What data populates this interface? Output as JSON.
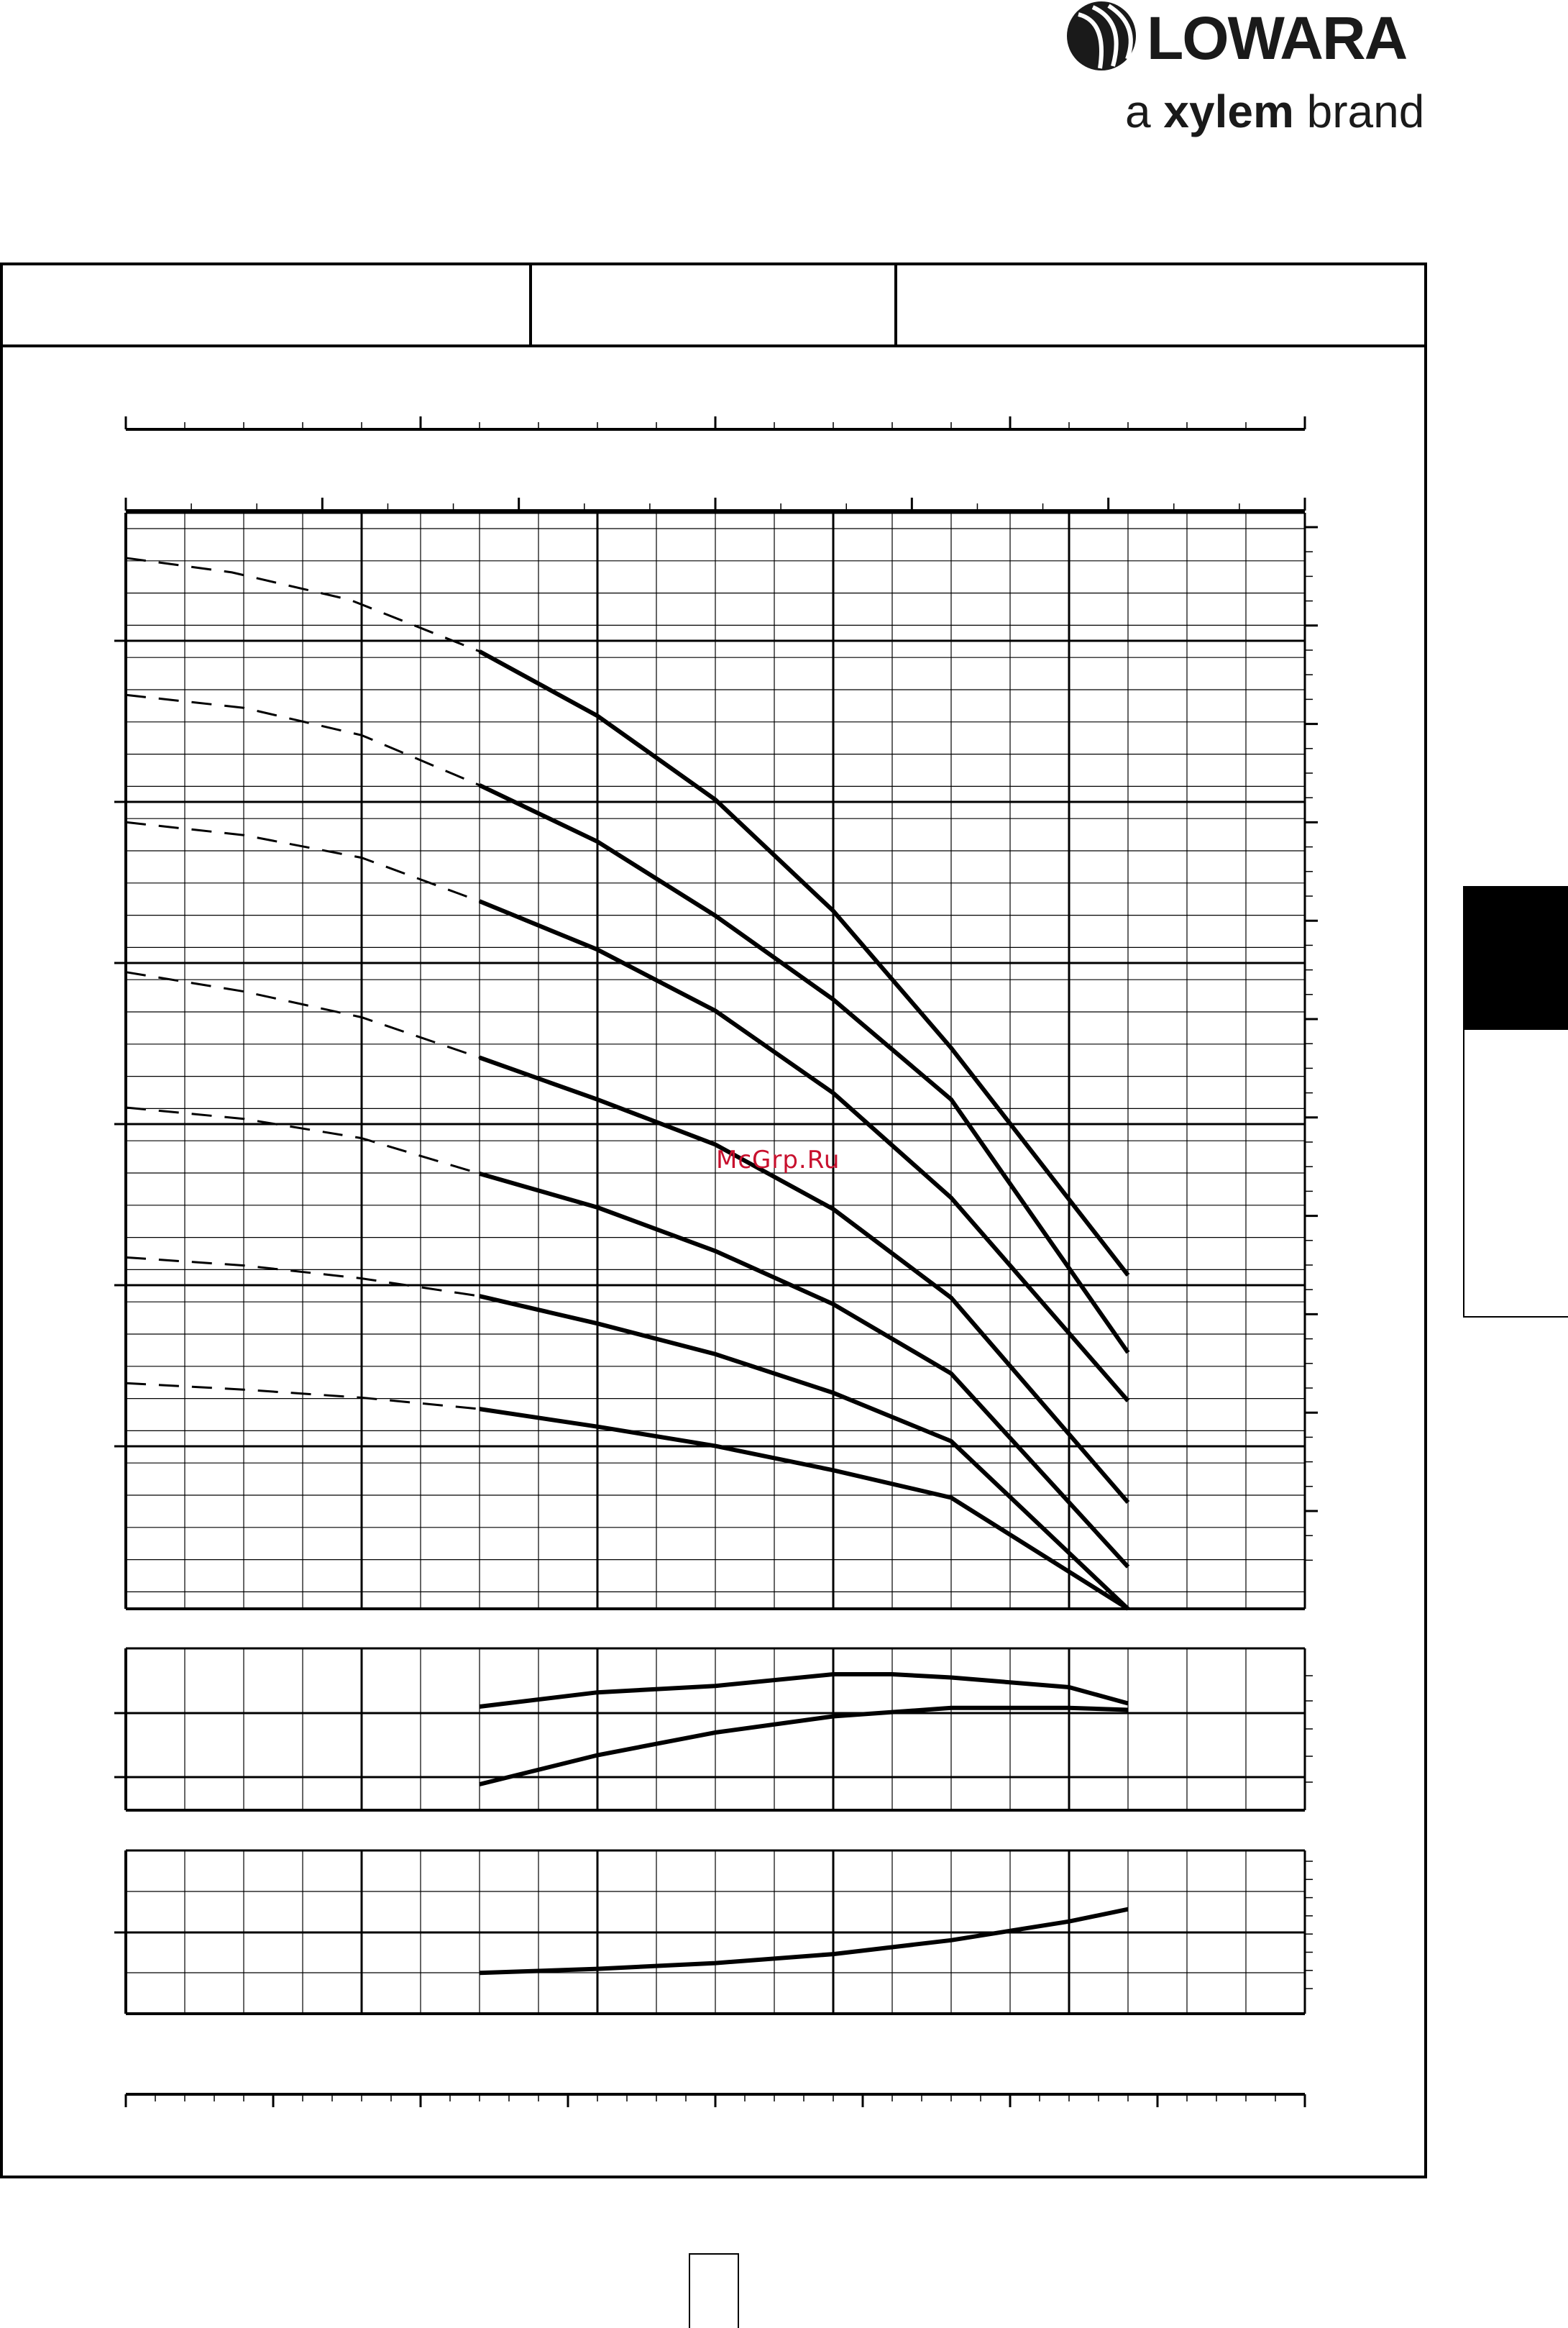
{
  "brand": {
    "name": "LOWARA",
    "tagline_prefix": "a",
    "tagline_brand": "xylem",
    "tagline_suffix": "brand"
  },
  "watermark": "McGrp.Ru",
  "colors": {
    "ink": "#000000",
    "watermark": "#c8102e"
  },
  "chart_data": [
    {
      "type": "line",
      "name": "head-curves",
      "x_range": [
        0,
        10
      ],
      "y_range": [
        0,
        68
      ],
      "grid": true,
      "series": [
        {
          "values": [
            [
              0.0,
              65.2
            ],
            [
              0.9,
              64.3
            ],
            [
              1.9,
              62.6
            ],
            [
              3.0,
              59.4
            ],
            [
              4.0,
              55.4
            ],
            [
              5.0,
              50.2
            ],
            [
              6.0,
              43.3
            ],
            [
              7.0,
              34.8
            ],
            [
              8.5,
              20.7
            ]
          ]
        },
        {
          "values": [
            [
              0.0,
              56.7
            ],
            [
              1.0,
              55.9
            ],
            [
              2.0,
              54.2
            ],
            [
              3.0,
              51.1
            ],
            [
              4.0,
              47.6
            ],
            [
              5.0,
              43.0
            ],
            [
              6.0,
              37.8
            ],
            [
              7.0,
              31.6
            ],
            [
              8.5,
              15.9
            ]
          ]
        },
        {
          "values": [
            [
              0.0,
              48.8
            ],
            [
              1.0,
              48.0
            ],
            [
              2.0,
              46.6
            ],
            [
              3.0,
              43.9
            ],
            [
              4.0,
              40.9
            ],
            [
              5.0,
              37.1
            ],
            [
              6.0,
              32.0
            ],
            [
              7.0,
              25.5
            ],
            [
              8.5,
              12.9
            ]
          ]
        },
        {
          "values": [
            [
              0.0,
              39.5
            ],
            [
              1.0,
              38.3
            ],
            [
              2.0,
              36.7
            ],
            [
              3.0,
              34.2
            ],
            [
              4.0,
              31.6
            ],
            [
              5.0,
              28.8
            ],
            [
              6.0,
              24.8
            ],
            [
              7.0,
              19.3
            ],
            [
              8.5,
              6.6
            ]
          ]
        },
        {
          "values": [
            [
              0.0,
              31.1
            ],
            [
              1.0,
              30.4
            ],
            [
              2.0,
              29.2
            ],
            [
              3.0,
              27.0
            ],
            [
              4.0,
              24.9
            ],
            [
              5.0,
              22.2
            ],
            [
              6.0,
              18.9
            ],
            [
              7.0,
              14.6
            ],
            [
              8.5,
              2.6
            ]
          ]
        },
        {
          "values": [
            [
              0.0,
              21.8
            ],
            [
              1.0,
              21.3
            ],
            [
              2.0,
              20.5
            ],
            [
              3.0,
              19.4
            ],
            [
              4.0,
              17.7
            ],
            [
              5.0,
              15.8
            ],
            [
              6.0,
              13.4
            ],
            [
              7.0,
              10.4
            ],
            [
              8.5,
              0.0
            ]
          ]
        },
        {
          "values": [
            [
              0.0,
              14.0
            ],
            [
              1.0,
              13.6
            ],
            [
              2.0,
              13.1
            ],
            [
              3.0,
              12.4
            ],
            [
              4.0,
              11.3
            ],
            [
              5.0,
              10.1
            ],
            [
              6.0,
              8.6
            ],
            [
              7.0,
              6.9
            ],
            [
              8.5,
              0.0
            ]
          ]
        }
      ]
    },
    {
      "type": "line",
      "name": "efficiency-curves",
      "x_range": [
        0,
        10
      ],
      "y_range": [
        0,
        2.5
      ],
      "grid": true,
      "series": [
        {
          "values": [
            [
              3.0,
              1.6
            ],
            [
              4.0,
              1.82
            ],
            [
              5.0,
              1.92
            ],
            [
              6.0,
              2.1
            ],
            [
              6.5,
              2.1
            ],
            [
              7.0,
              2.05
            ],
            [
              8.0,
              1.9
            ],
            [
              8.5,
              1.65
            ]
          ]
        },
        {
          "values": [
            [
              3.0,
              0.4
            ],
            [
              4.0,
              0.85
            ],
            [
              5.0,
              1.2
            ],
            [
              6.0,
              1.45
            ],
            [
              7.0,
              1.58
            ],
            [
              8.0,
              1.58
            ],
            [
              8.5,
              1.55
            ]
          ]
        }
      ]
    },
    {
      "type": "line",
      "name": "npsh-curve",
      "x_range": [
        0,
        10
      ],
      "y_range": [
        0,
        2
      ],
      "grid": true,
      "series": [
        {
          "values": [
            [
              3.0,
              0.5
            ],
            [
              4.0,
              0.55
            ],
            [
              5.0,
              0.62
            ],
            [
              6.0,
              0.73
            ],
            [
              7.0,
              0.9
            ],
            [
              8.0,
              1.13
            ],
            [
              8.5,
              1.28
            ]
          ]
        }
      ]
    }
  ]
}
